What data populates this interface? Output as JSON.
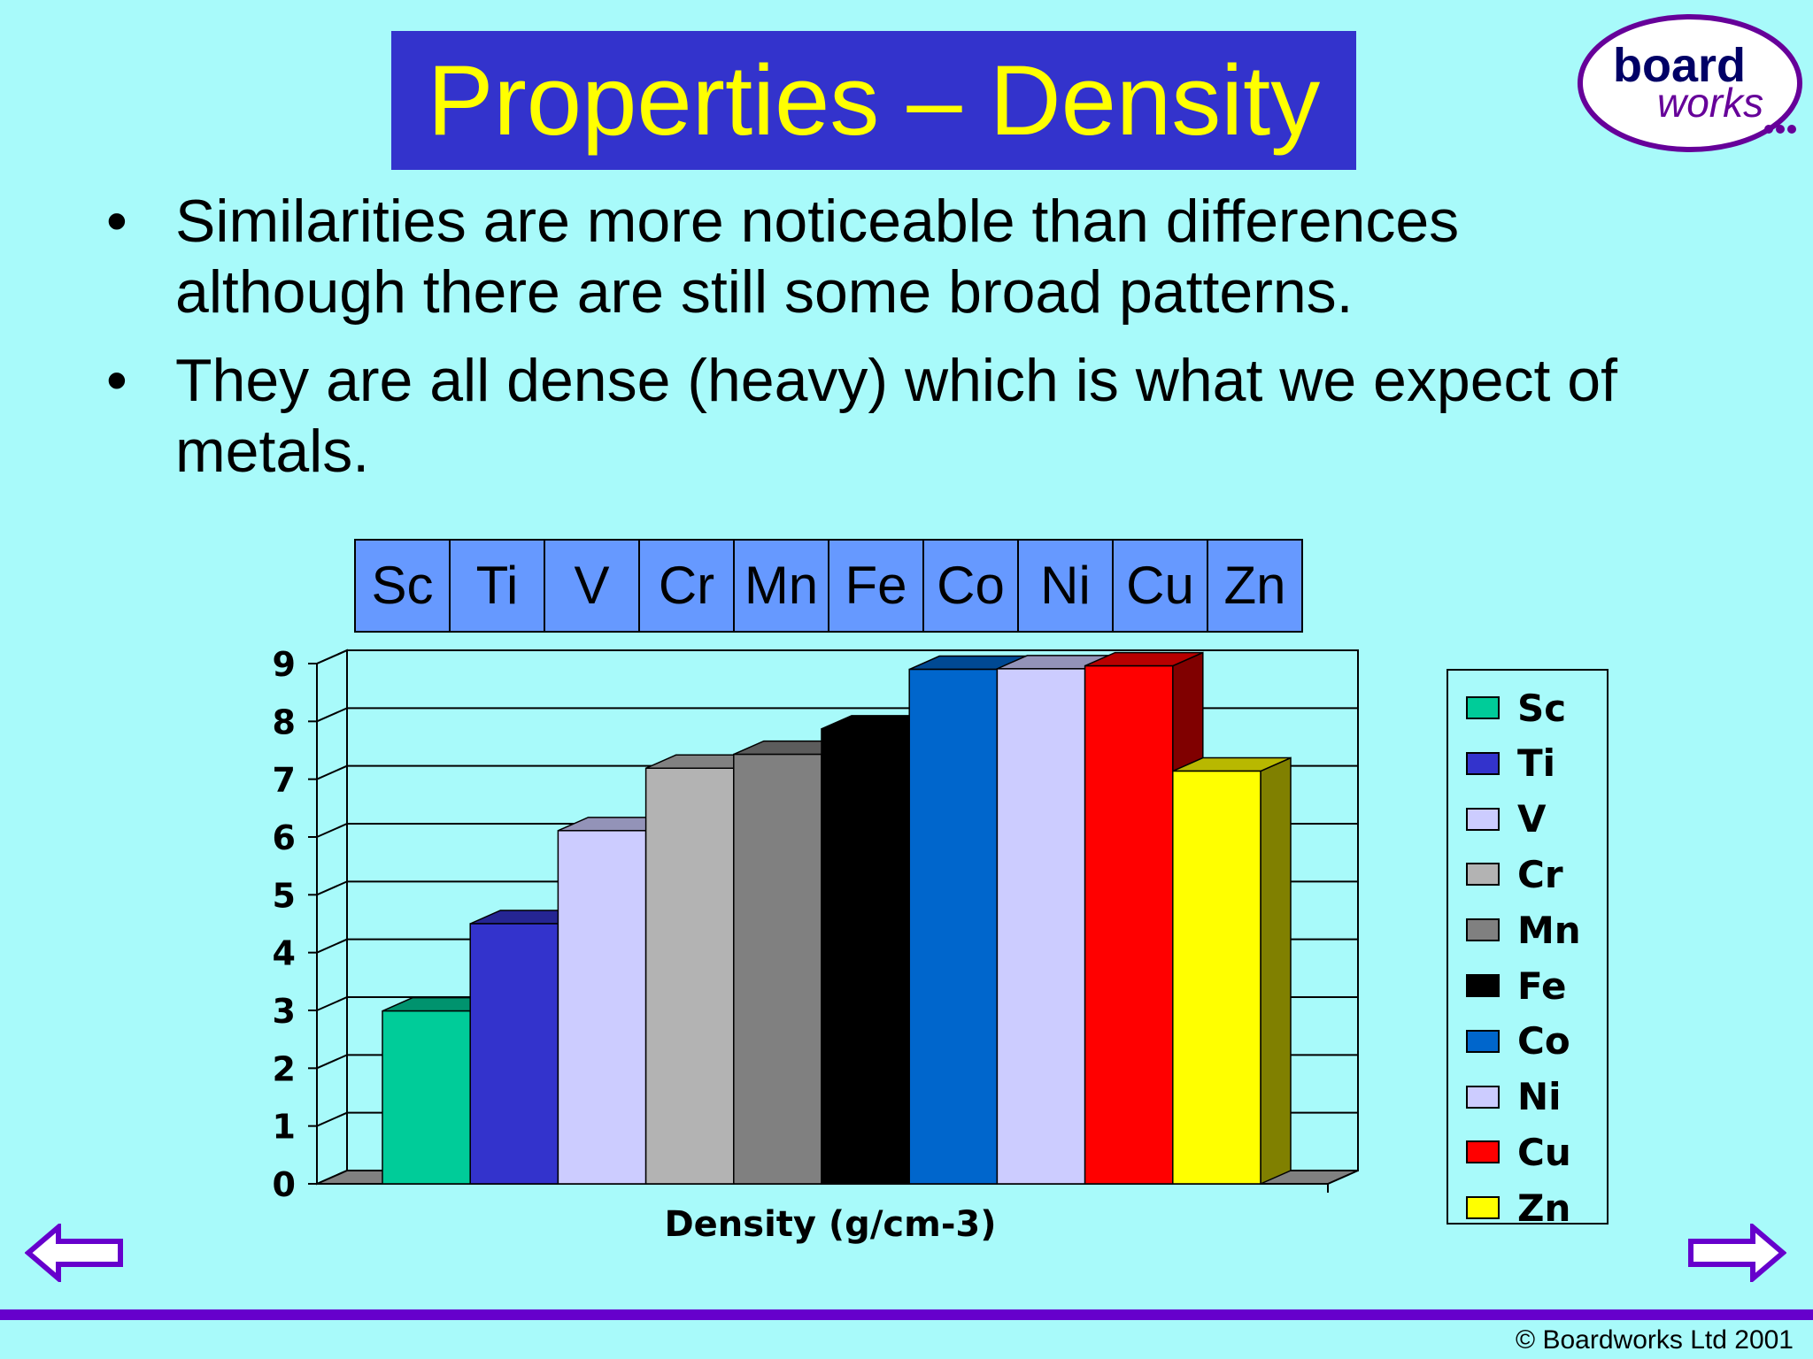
{
  "slide": {
    "title": "Properties – Density",
    "bullets": [
      "Similarities are more noticeable than differences although there are still some broad patterns.",
      "They are all dense (heavy) which is what we expect of metals."
    ],
    "element_row": [
      "Sc",
      "Ti",
      "V",
      "Cr",
      "Mn",
      "Fe",
      "Co",
      "Ni",
      "Cu",
      "Zn"
    ],
    "logo": {
      "line1": "board",
      "line2": "works"
    },
    "nav": {
      "prev_icon": "left-arrow-icon",
      "next_icon": "right-arrow-icon"
    },
    "copyright": "© Boardworks Ltd 2001"
  },
  "colors": {
    "background": "#a8fafa",
    "title_bg": "#3333cc",
    "title_text": "#ffff00",
    "element_row_bg": "#6699ff",
    "accent_purple": "#6600cc"
  },
  "chart_data": {
    "type": "bar",
    "style": "3d",
    "categories": [
      "Sc",
      "Ti",
      "V",
      "Cr",
      "Mn",
      "Fe",
      "Co",
      "Ni",
      "Cu",
      "Zn"
    ],
    "values": [
      2.99,
      4.5,
      6.11,
      7.19,
      7.43,
      7.87,
      8.9,
      8.91,
      8.96,
      7.14
    ],
    "colors": [
      "#00cc99",
      "#3333cc",
      "#ccccff",
      "#b3b3b3",
      "#808080",
      "#000000",
      "#0066cc",
      "#ccccff",
      "#ff0000",
      "#ffff00"
    ],
    "title": "",
    "xlabel": "Density (g/cm-3)",
    "ylabel": "",
    "ylim": [
      0,
      9
    ],
    "yticks": [
      "0",
      "1",
      "2",
      "3",
      "4",
      "5",
      "6",
      "7",
      "8",
      "9"
    ],
    "grid": true,
    "legend": {
      "position": "right",
      "entries": [
        "Sc",
        "Ti",
        "V",
        "Cr",
        "Mn",
        "Fe",
        "Co",
        "Ni",
        "Cu",
        "Zn"
      ]
    }
  }
}
